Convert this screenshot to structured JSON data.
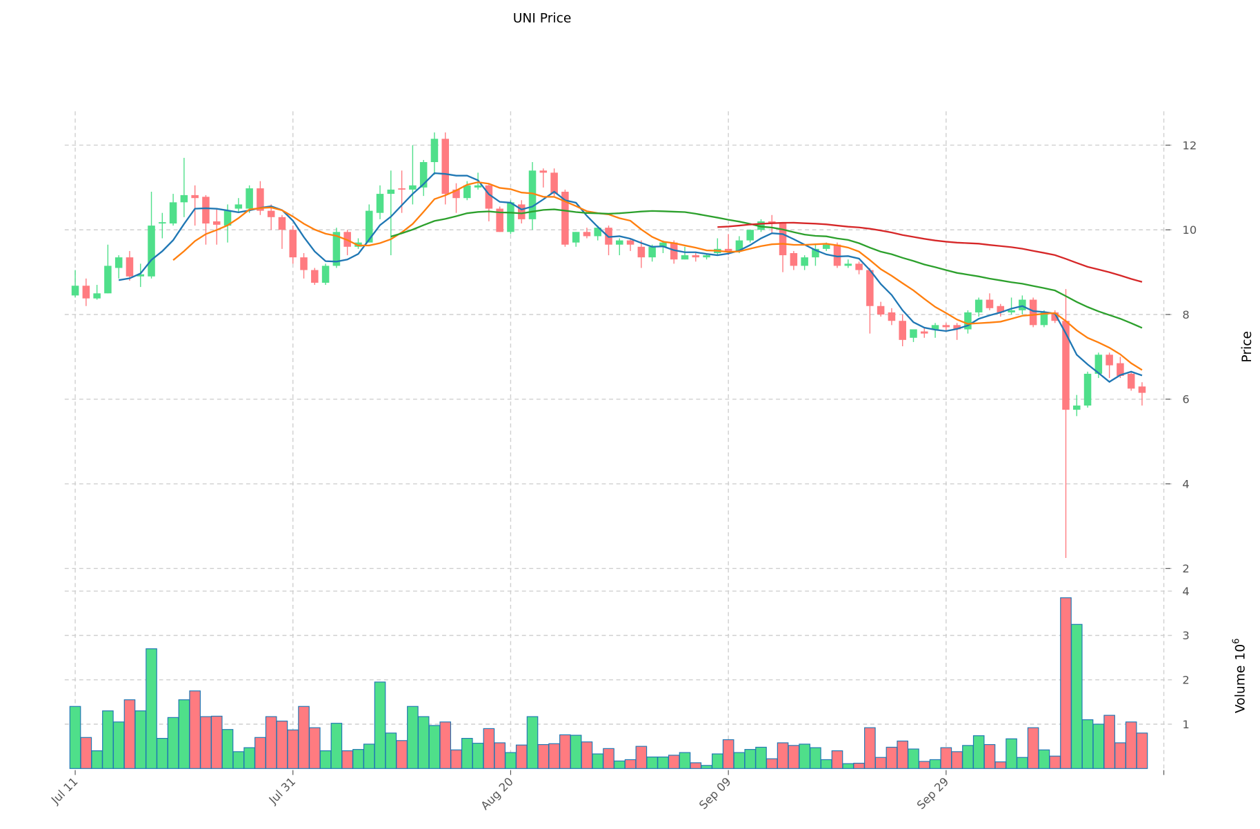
{
  "chart_data": {
    "type": "candlestick",
    "title": "UNI Price",
    "ylabel": "Price",
    "volume_label": "Volume",
    "volume_exponent": "10",
    "volume_exponent_power": "6",
    "ylim": [
      2,
      12.8
    ],
    "volume_ylim": [
      0,
      4.05
    ],
    "grid": true,
    "x_tick_labels": [
      "Jul 11",
      "Jul 31",
      "Aug 20",
      "Sep 09",
      "Sep 29"
    ],
    "price_ticks": [
      "2",
      "4",
      "6",
      "8",
      "10",
      "12"
    ],
    "volume_ticks": [
      "1",
      "2",
      "3",
      "4"
    ],
    "moving_averages": [
      {
        "window": 5,
        "color": "#1f77b4"
      },
      {
        "window": 10,
        "color": "#ff7f0e"
      },
      {
        "window": 30,
        "color": "#2ca02c"
      },
      {
        "window": 60,
        "color": "#d62728"
      }
    ],
    "colors": {
      "up": "#4fdf8a",
      "down": "#ff7b80",
      "volume_edge": "#1f77b4"
    },
    "ohlc": [
      [
        8.45,
        9.05,
        8.4,
        8.68
      ],
      [
        8.68,
        8.85,
        8.2,
        8.38
      ],
      [
        8.38,
        8.7,
        8.35,
        8.5
      ],
      [
        8.5,
        9.65,
        8.5,
        9.15
      ],
      [
        9.1,
        9.4,
        8.85,
        9.35
      ],
      [
        9.35,
        9.5,
        8.8,
        8.9
      ],
      [
        8.9,
        9.2,
        8.65,
        8.95
      ],
      [
        8.9,
        10.9,
        8.85,
        10.1
      ],
      [
        10.15,
        10.4,
        9.8,
        10.18
      ],
      [
        10.15,
        10.85,
        10.1,
        10.65
      ],
      [
        10.65,
        11.7,
        10.3,
        10.82
      ],
      [
        10.82,
        11.05,
        10.1,
        10.75
      ],
      [
        10.78,
        10.82,
        9.65,
        10.15
      ],
      [
        10.2,
        10.5,
        9.65,
        10.12
      ],
      [
        10.1,
        10.6,
        9.7,
        10.45
      ],
      [
        10.5,
        10.75,
        10.4,
        10.6
      ],
      [
        10.5,
        11.05,
        10.4,
        10.98
      ],
      [
        10.98,
        11.15,
        10.35,
        10.45
      ],
      [
        10.45,
        10.6,
        10.0,
        10.3
      ],
      [
        10.3,
        10.35,
        9.55,
        10.0
      ],
      [
        10.0,
        10.1,
        9.2,
        9.35
      ],
      [
        9.35,
        9.45,
        8.85,
        9.05
      ],
      [
        9.05,
        9.1,
        8.7,
        8.75
      ],
      [
        8.75,
        9.2,
        8.7,
        9.15
      ],
      [
        9.15,
        10.05,
        9.1,
        9.95
      ],
      [
        9.95,
        10.0,
        9.4,
        9.6
      ],
      [
        9.6,
        9.8,
        9.55,
        9.7
      ],
      [
        9.7,
        10.6,
        9.7,
        10.45
      ],
      [
        10.4,
        11.05,
        10.25,
        10.85
      ],
      [
        10.85,
        11.4,
        9.4,
        10.95
      ],
      [
        10.98,
        11.4,
        10.4,
        10.95
      ],
      [
        10.95,
        12.0,
        10.6,
        11.05
      ],
      [
        11.0,
        11.65,
        10.8,
        11.6
      ],
      [
        11.6,
        12.3,
        11.3,
        12.15
      ],
      [
        12.15,
        12.3,
        10.6,
        10.85
      ],
      [
        10.95,
        11.1,
        10.4,
        10.75
      ],
      [
        10.75,
        11.15,
        10.7,
        11.05
      ],
      [
        11.0,
        11.35,
        10.95,
        11.05
      ],
      [
        11.05,
        11.1,
        10.2,
        10.5
      ],
      [
        10.5,
        10.55,
        9.95,
        9.95
      ],
      [
        9.95,
        10.7,
        9.9,
        10.65
      ],
      [
        10.6,
        10.7,
        10.15,
        10.25
      ],
      [
        10.25,
        11.6,
        10.0,
        11.4
      ],
      [
        11.4,
        11.45,
        11.0,
        11.35
      ],
      [
        11.35,
        11.45,
        10.8,
        10.85
      ],
      [
        10.9,
        10.95,
        9.6,
        9.65
      ],
      [
        9.7,
        9.95,
        9.6,
        9.95
      ],
      [
        9.95,
        10.05,
        9.8,
        9.85
      ],
      [
        9.85,
        10.1,
        9.75,
        10.05
      ],
      [
        10.05,
        10.1,
        9.4,
        9.65
      ],
      [
        9.65,
        9.8,
        9.4,
        9.75
      ],
      [
        9.75,
        9.8,
        9.5,
        9.65
      ],
      [
        9.6,
        9.75,
        9.1,
        9.35
      ],
      [
        9.35,
        9.65,
        9.25,
        9.6
      ],
      [
        9.6,
        9.75,
        9.45,
        9.7
      ],
      [
        9.7,
        9.75,
        9.2,
        9.3
      ],
      [
        9.3,
        9.6,
        9.3,
        9.4
      ],
      [
        9.4,
        9.45,
        9.25,
        9.35
      ],
      [
        9.35,
        9.45,
        9.3,
        9.4
      ],
      [
        9.45,
        9.8,
        9.4,
        9.55
      ],
      [
        9.55,
        9.9,
        9.4,
        9.5
      ],
      [
        9.5,
        9.85,
        9.45,
        9.75
      ],
      [
        9.75,
        10.0,
        9.7,
        10.0
      ],
      [
        10.0,
        10.25,
        9.95,
        10.2
      ],
      [
        10.2,
        10.35,
        9.9,
        10.15
      ],
      [
        10.15,
        10.15,
        9.0,
        9.4
      ],
      [
        9.45,
        9.5,
        9.05,
        9.15
      ],
      [
        9.15,
        9.4,
        9.05,
        9.35
      ],
      [
        9.35,
        9.65,
        9.15,
        9.55
      ],
      [
        9.55,
        9.7,
        9.5,
        9.65
      ],
      [
        9.65,
        9.7,
        9.1,
        9.15
      ],
      [
        9.15,
        9.3,
        9.1,
        9.2
      ],
      [
        9.2,
        9.25,
        8.95,
        9.05
      ],
      [
        9.05,
        9.1,
        7.55,
        8.2
      ],
      [
        8.2,
        8.3,
        7.95,
        8.0
      ],
      [
        8.05,
        8.15,
        7.75,
        7.85
      ],
      [
        7.85,
        8.0,
        7.25,
        7.4
      ],
      [
        7.45,
        7.65,
        7.35,
        7.65
      ],
      [
        7.6,
        7.7,
        7.45,
        7.55
      ],
      [
        7.65,
        7.8,
        7.45,
        7.75
      ],
      [
        7.75,
        7.8,
        7.6,
        7.7
      ],
      [
        7.75,
        7.8,
        7.4,
        7.65
      ],
      [
        7.65,
        8.1,
        7.55,
        8.05
      ],
      [
        8.05,
        8.4,
        7.95,
        8.35
      ],
      [
        8.35,
        8.5,
        8.1,
        8.15
      ],
      [
        8.2,
        8.25,
        7.95,
        8.05
      ],
      [
        8.05,
        8.4,
        8.0,
        8.1
      ],
      [
        8.1,
        8.45,
        8.0,
        8.35
      ],
      [
        8.35,
        8.4,
        7.7,
        7.75
      ],
      [
        7.75,
        8.1,
        7.7,
        8.05
      ],
      [
        8.05,
        8.1,
        7.8,
        7.85
      ],
      [
        7.85,
        8.6,
        2.25,
        5.75
      ],
      [
        5.75,
        6.1,
        5.6,
        5.85
      ],
      [
        5.85,
        6.65,
        5.8,
        6.6
      ],
      [
        6.6,
        7.1,
        6.5,
        7.05
      ],
      [
        7.05,
        7.1,
        6.5,
        6.8
      ],
      [
        6.85,
        7.0,
        6.5,
        6.55
      ],
      [
        6.6,
        6.65,
        6.2,
        6.25
      ],
      [
        6.3,
        6.4,
        5.85,
        6.15
      ]
    ],
    "volume": [
      1.4,
      0.7,
      0.4,
      1.3,
      1.05,
      1.55,
      1.3,
      2.7,
      0.68,
      1.15,
      1.55,
      1.75,
      1.17,
      1.18,
      0.88,
      0.38,
      0.47,
      0.7,
      1.17,
      1.07,
      0.87,
      1.4,
      0.92,
      0.4,
      1.02,
      0.4,
      0.43,
      0.55,
      1.95,
      0.8,
      0.63,
      1.4,
      1.17,
      0.97,
      1.05,
      0.42,
      0.68,
      0.57,
      0.9,
      0.58,
      0.36,
      0.53,
      1.17,
      0.54,
      0.56,
      0.76,
      0.75,
      0.6,
      0.33,
      0.45,
      0.17,
      0.2,
      0.5,
      0.26,
      0.26,
      0.3,
      0.36,
      0.13,
      0.07,
      0.33,
      0.65,
      0.36,
      0.43,
      0.48,
      0.22,
      0.58,
      0.52,
      0.55,
      0.47,
      0.2,
      0.4,
      0.11,
      0.12,
      0.92,
      0.25,
      0.48,
      0.62,
      0.44,
      0.16,
      0.2,
      0.47,
      0.38,
      0.52,
      0.74,
      0.54,
      0.15,
      0.67,
      0.25,
      0.92,
      0.42,
      0.28,
      3.85,
      3.25,
      1.1,
      1.0,
      1.2,
      0.58,
      1.05,
      0.8
    ]
  }
}
